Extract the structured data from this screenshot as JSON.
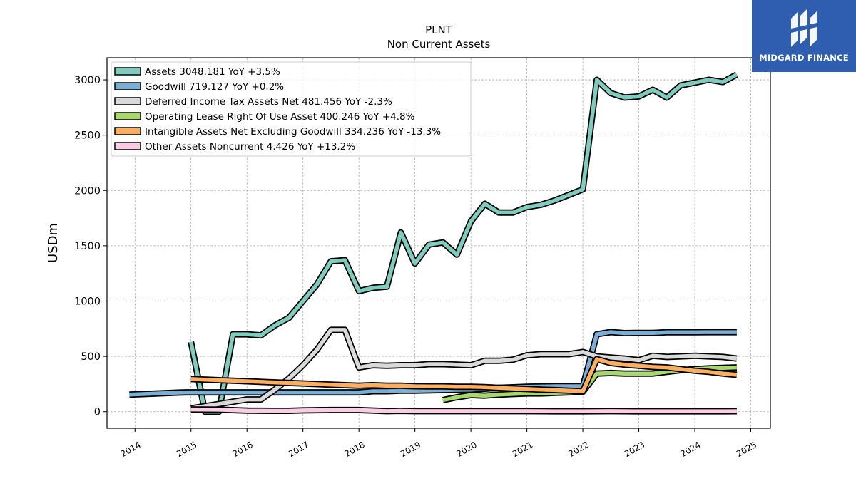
{
  "chart_data": {
    "type": "line",
    "title": "PLNT",
    "subtitle": "Non Current  Assets",
    "xlabel": "",
    "ylabel": "USDm",
    "xlim": [
      2013.5,
      2025.35
    ],
    "ylim": [
      -150,
      3200
    ],
    "xticks": [
      "2014",
      "2015",
      "2016",
      "2017",
      "2018",
      "2019",
      "2020",
      "2021",
      "2022",
      "2023",
      "2024",
      "2025"
    ],
    "yticks": [
      "0",
      "500",
      "1000",
      "1500",
      "2000",
      "2500",
      "3000"
    ],
    "grid": true,
    "legend_position": "upper-left",
    "series": [
      {
        "name": "Assets",
        "legend": "Assets  3048.181 YoY +3.5%",
        "color": "#7fcbbd",
        "points": [
          [
            2015.0,
            630
          ],
          [
            2015.25,
            0
          ],
          [
            2015.5,
            0
          ],
          [
            2015.75,
            700
          ],
          [
            2016.0,
            700
          ],
          [
            2016.25,
            690
          ],
          [
            2016.5,
            780
          ],
          [
            2016.75,
            850
          ],
          [
            2017.0,
            1000
          ],
          [
            2017.25,
            1150
          ],
          [
            2017.5,
            1360
          ],
          [
            2017.75,
            1370
          ],
          [
            2018.0,
            1090
          ],
          [
            2018.25,
            1120
          ],
          [
            2018.5,
            1130
          ],
          [
            2018.75,
            1620
          ],
          [
            2019.0,
            1340
          ],
          [
            2019.25,
            1510
          ],
          [
            2019.5,
            1530
          ],
          [
            2019.75,
            1420
          ],
          [
            2020.0,
            1720
          ],
          [
            2020.25,
            1880
          ],
          [
            2020.5,
            1800
          ],
          [
            2020.75,
            1800
          ],
          [
            2021.0,
            1850
          ],
          [
            2021.25,
            1870
          ],
          [
            2021.5,
            1910
          ],
          [
            2021.75,
            1960
          ],
          [
            2022.0,
            2010
          ],
          [
            2022.25,
            3000
          ],
          [
            2022.5,
            2880
          ],
          [
            2022.75,
            2840
          ],
          [
            2023.0,
            2850
          ],
          [
            2023.25,
            2910
          ],
          [
            2023.5,
            2840
          ],
          [
            2023.75,
            2950
          ],
          [
            2024.0,
            2975
          ],
          [
            2024.25,
            3000
          ],
          [
            2024.5,
            2980
          ],
          [
            2024.75,
            3048
          ]
        ]
      },
      {
        "name": "Goodwill",
        "legend": "Goodwill  719.127 YoY +0.2%",
        "color": "#7aaed4",
        "points": [
          [
            2013.9,
            155
          ],
          [
            2014.9,
            175
          ],
          [
            2015.5,
            175
          ],
          [
            2016.0,
            175
          ],
          [
            2016.5,
            175
          ],
          [
            2017.0,
            175
          ],
          [
            2017.5,
            175
          ],
          [
            2018.0,
            175
          ],
          [
            2018.25,
            185
          ],
          [
            2018.5,
            185
          ],
          [
            2018.75,
            190
          ],
          [
            2019.0,
            190
          ],
          [
            2019.5,
            195
          ],
          [
            2020.0,
            200
          ],
          [
            2020.5,
            215
          ],
          [
            2021.0,
            225
          ],
          [
            2021.5,
            230
          ],
          [
            2022.0,
            230
          ],
          [
            2022.25,
            700
          ],
          [
            2022.5,
            720
          ],
          [
            2022.75,
            710
          ],
          [
            2023.0,
            712
          ],
          [
            2023.25,
            712
          ],
          [
            2023.5,
            718
          ],
          [
            2023.75,
            718
          ],
          [
            2024.0,
            718
          ],
          [
            2024.25,
            719
          ],
          [
            2024.5,
            719
          ],
          [
            2024.75,
            719
          ]
        ]
      },
      {
        "name": "Deferred Income Tax Assets Net",
        "legend": "Deferred Income Tax Assets Net  481.456 YoY -2.3%",
        "color": "#d9d9d9",
        "points": [
          [
            2015.0,
            30
          ],
          [
            2015.5,
            70
          ],
          [
            2016.0,
            110
          ],
          [
            2016.25,
            110
          ],
          [
            2016.5,
            200
          ],
          [
            2016.75,
            300
          ],
          [
            2017.0,
            420
          ],
          [
            2017.25,
            560
          ],
          [
            2017.5,
            740
          ],
          [
            2017.75,
            740
          ],
          [
            2018.0,
            400
          ],
          [
            2018.25,
            420
          ],
          [
            2018.5,
            415
          ],
          [
            2018.75,
            420
          ],
          [
            2019.0,
            420
          ],
          [
            2019.25,
            430
          ],
          [
            2019.5,
            430
          ],
          [
            2019.75,
            425
          ],
          [
            2020.0,
            420
          ],
          [
            2020.25,
            460
          ],
          [
            2020.5,
            460
          ],
          [
            2020.75,
            470
          ],
          [
            2021.0,
            510
          ],
          [
            2021.25,
            520
          ],
          [
            2021.5,
            520
          ],
          [
            2021.75,
            520
          ],
          [
            2022.0,
            540
          ],
          [
            2022.25,
            500
          ],
          [
            2022.5,
            490
          ],
          [
            2022.75,
            480
          ],
          [
            2023.0,
            465
          ],
          [
            2023.25,
            505
          ],
          [
            2023.5,
            495
          ],
          [
            2023.75,
            500
          ],
          [
            2024.0,
            505
          ],
          [
            2024.25,
            500
          ],
          [
            2024.5,
            495
          ],
          [
            2024.75,
            481
          ]
        ]
      },
      {
        "name": "Operating Lease Right Of Use Asset",
        "legend": "Operating Lease Right Of Use Asset  400.246 YoY +4.8%",
        "color": "#a6d96a",
        "points": [
          [
            2019.5,
            105
          ],
          [
            2019.75,
            130
          ],
          [
            2020.0,
            150
          ],
          [
            2020.25,
            145
          ],
          [
            2020.5,
            155
          ],
          [
            2020.75,
            160
          ],
          [
            2021.0,
            165
          ],
          [
            2021.25,
            165
          ],
          [
            2021.5,
            170
          ],
          [
            2021.75,
            175
          ],
          [
            2022.0,
            180
          ],
          [
            2022.25,
            345
          ],
          [
            2022.5,
            350
          ],
          [
            2022.75,
            345
          ],
          [
            2023.0,
            345
          ],
          [
            2023.25,
            345
          ],
          [
            2023.5,
            360
          ],
          [
            2023.75,
            375
          ],
          [
            2024.0,
            385
          ],
          [
            2024.25,
            392
          ],
          [
            2024.5,
            396
          ],
          [
            2024.75,
            400
          ]
        ]
      },
      {
        "name": "Intangible Assets Net Excluding Goodwill",
        "legend": "Intangible Assets Net Excluding Goodwill  334.236 YoY -13.3%",
        "color": "#fdae61",
        "points": [
          [
            2015.0,
            295
          ],
          [
            2015.5,
            285
          ],
          [
            2016.0,
            275
          ],
          [
            2016.5,
            265
          ],
          [
            2017.0,
            255
          ],
          [
            2017.5,
            245
          ],
          [
            2018.0,
            235
          ],
          [
            2018.25,
            240
          ],
          [
            2018.5,
            235
          ],
          [
            2018.75,
            235
          ],
          [
            2019.0,
            230
          ],
          [
            2019.25,
            228
          ],
          [
            2019.5,
            228
          ],
          [
            2019.75,
            225
          ],
          [
            2020.0,
            225
          ],
          [
            2020.25,
            222
          ],
          [
            2020.5,
            215
          ],
          [
            2020.75,
            210
          ],
          [
            2021.0,
            205
          ],
          [
            2021.25,
            200
          ],
          [
            2021.5,
            195
          ],
          [
            2021.75,
            190
          ],
          [
            2022.0,
            185
          ],
          [
            2022.25,
            475
          ],
          [
            2022.5,
            440
          ],
          [
            2022.75,
            425
          ],
          [
            2023.0,
            415
          ],
          [
            2023.25,
            405
          ],
          [
            2023.5,
            400
          ],
          [
            2023.75,
            385
          ],
          [
            2024.0,
            370
          ],
          [
            2024.25,
            360
          ],
          [
            2024.5,
            345
          ],
          [
            2024.75,
            334
          ]
        ]
      },
      {
        "name": "Other Assets Noncurrent",
        "legend": "Other Assets Noncurrent  4.426 YoY +13.2%",
        "color": "#fbcce4",
        "points": [
          [
            2015.0,
            20
          ],
          [
            2015.5,
            18
          ],
          [
            2016.0,
            10
          ],
          [
            2016.5,
            8
          ],
          [
            2016.75,
            8
          ],
          [
            2017.0,
            12
          ],
          [
            2017.5,
            15
          ],
          [
            2018.0,
            15
          ],
          [
            2018.5,
            5
          ],
          [
            2018.75,
            8
          ],
          [
            2019.0,
            5
          ],
          [
            2019.5,
            5
          ],
          [
            2020.0,
            5
          ],
          [
            2020.5,
            5
          ],
          [
            2021.0,
            5
          ],
          [
            2021.5,
            4
          ],
          [
            2022.0,
            4
          ],
          [
            2022.5,
            5
          ],
          [
            2023.0,
            4
          ],
          [
            2023.5,
            4
          ],
          [
            2024.0,
            4
          ],
          [
            2024.5,
            4
          ],
          [
            2024.75,
            4.4
          ]
        ]
      }
    ]
  },
  "logo": {
    "text": "MIDGARD FINANCE",
    "icon": "midgard-logo-icon",
    "background": "#2f5db0"
  }
}
